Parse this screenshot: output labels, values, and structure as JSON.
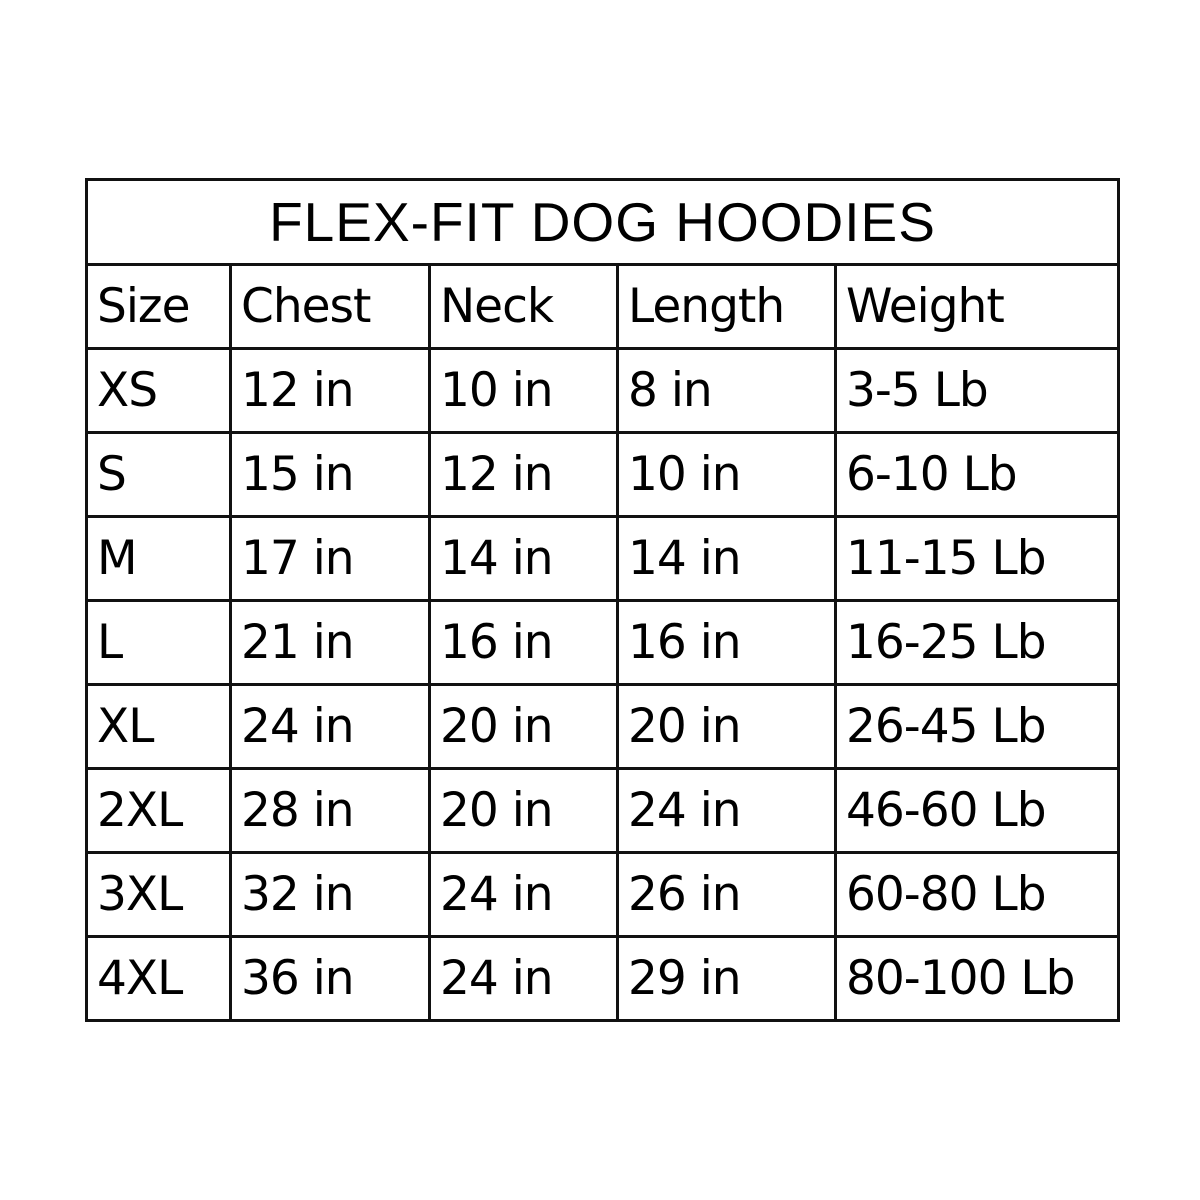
{
  "title": "FLEX-FIT DOG HOODIES",
  "headers": [
    "Size",
    "Chest",
    "Neck",
    "Length",
    "Weight"
  ],
  "rows": [
    [
      "XS",
      "12 in",
      "10 in",
      "8 in",
      "3-5 Lb"
    ],
    [
      "S",
      "15 in",
      "12 in",
      "10 in",
      "6-10 Lb"
    ],
    [
      "M",
      "17 in",
      "14 in",
      "14 in",
      "11-15 Lb"
    ],
    [
      "L",
      "21 in",
      "16 in",
      "16 in",
      "16-25 Lb"
    ],
    [
      "XL",
      "24 in",
      "20 in",
      "20 in",
      "26-45 Lb"
    ],
    [
      "2XL",
      "28 in",
      "20 in",
      "24 in",
      "46-60 Lb"
    ],
    [
      "3XL",
      "32 in",
      "24 in",
      "26 in",
      "60-80 Lb"
    ],
    [
      "4XL",
      "36 in",
      "24 in",
      "29 in",
      "80-100 Lb"
    ]
  ]
}
